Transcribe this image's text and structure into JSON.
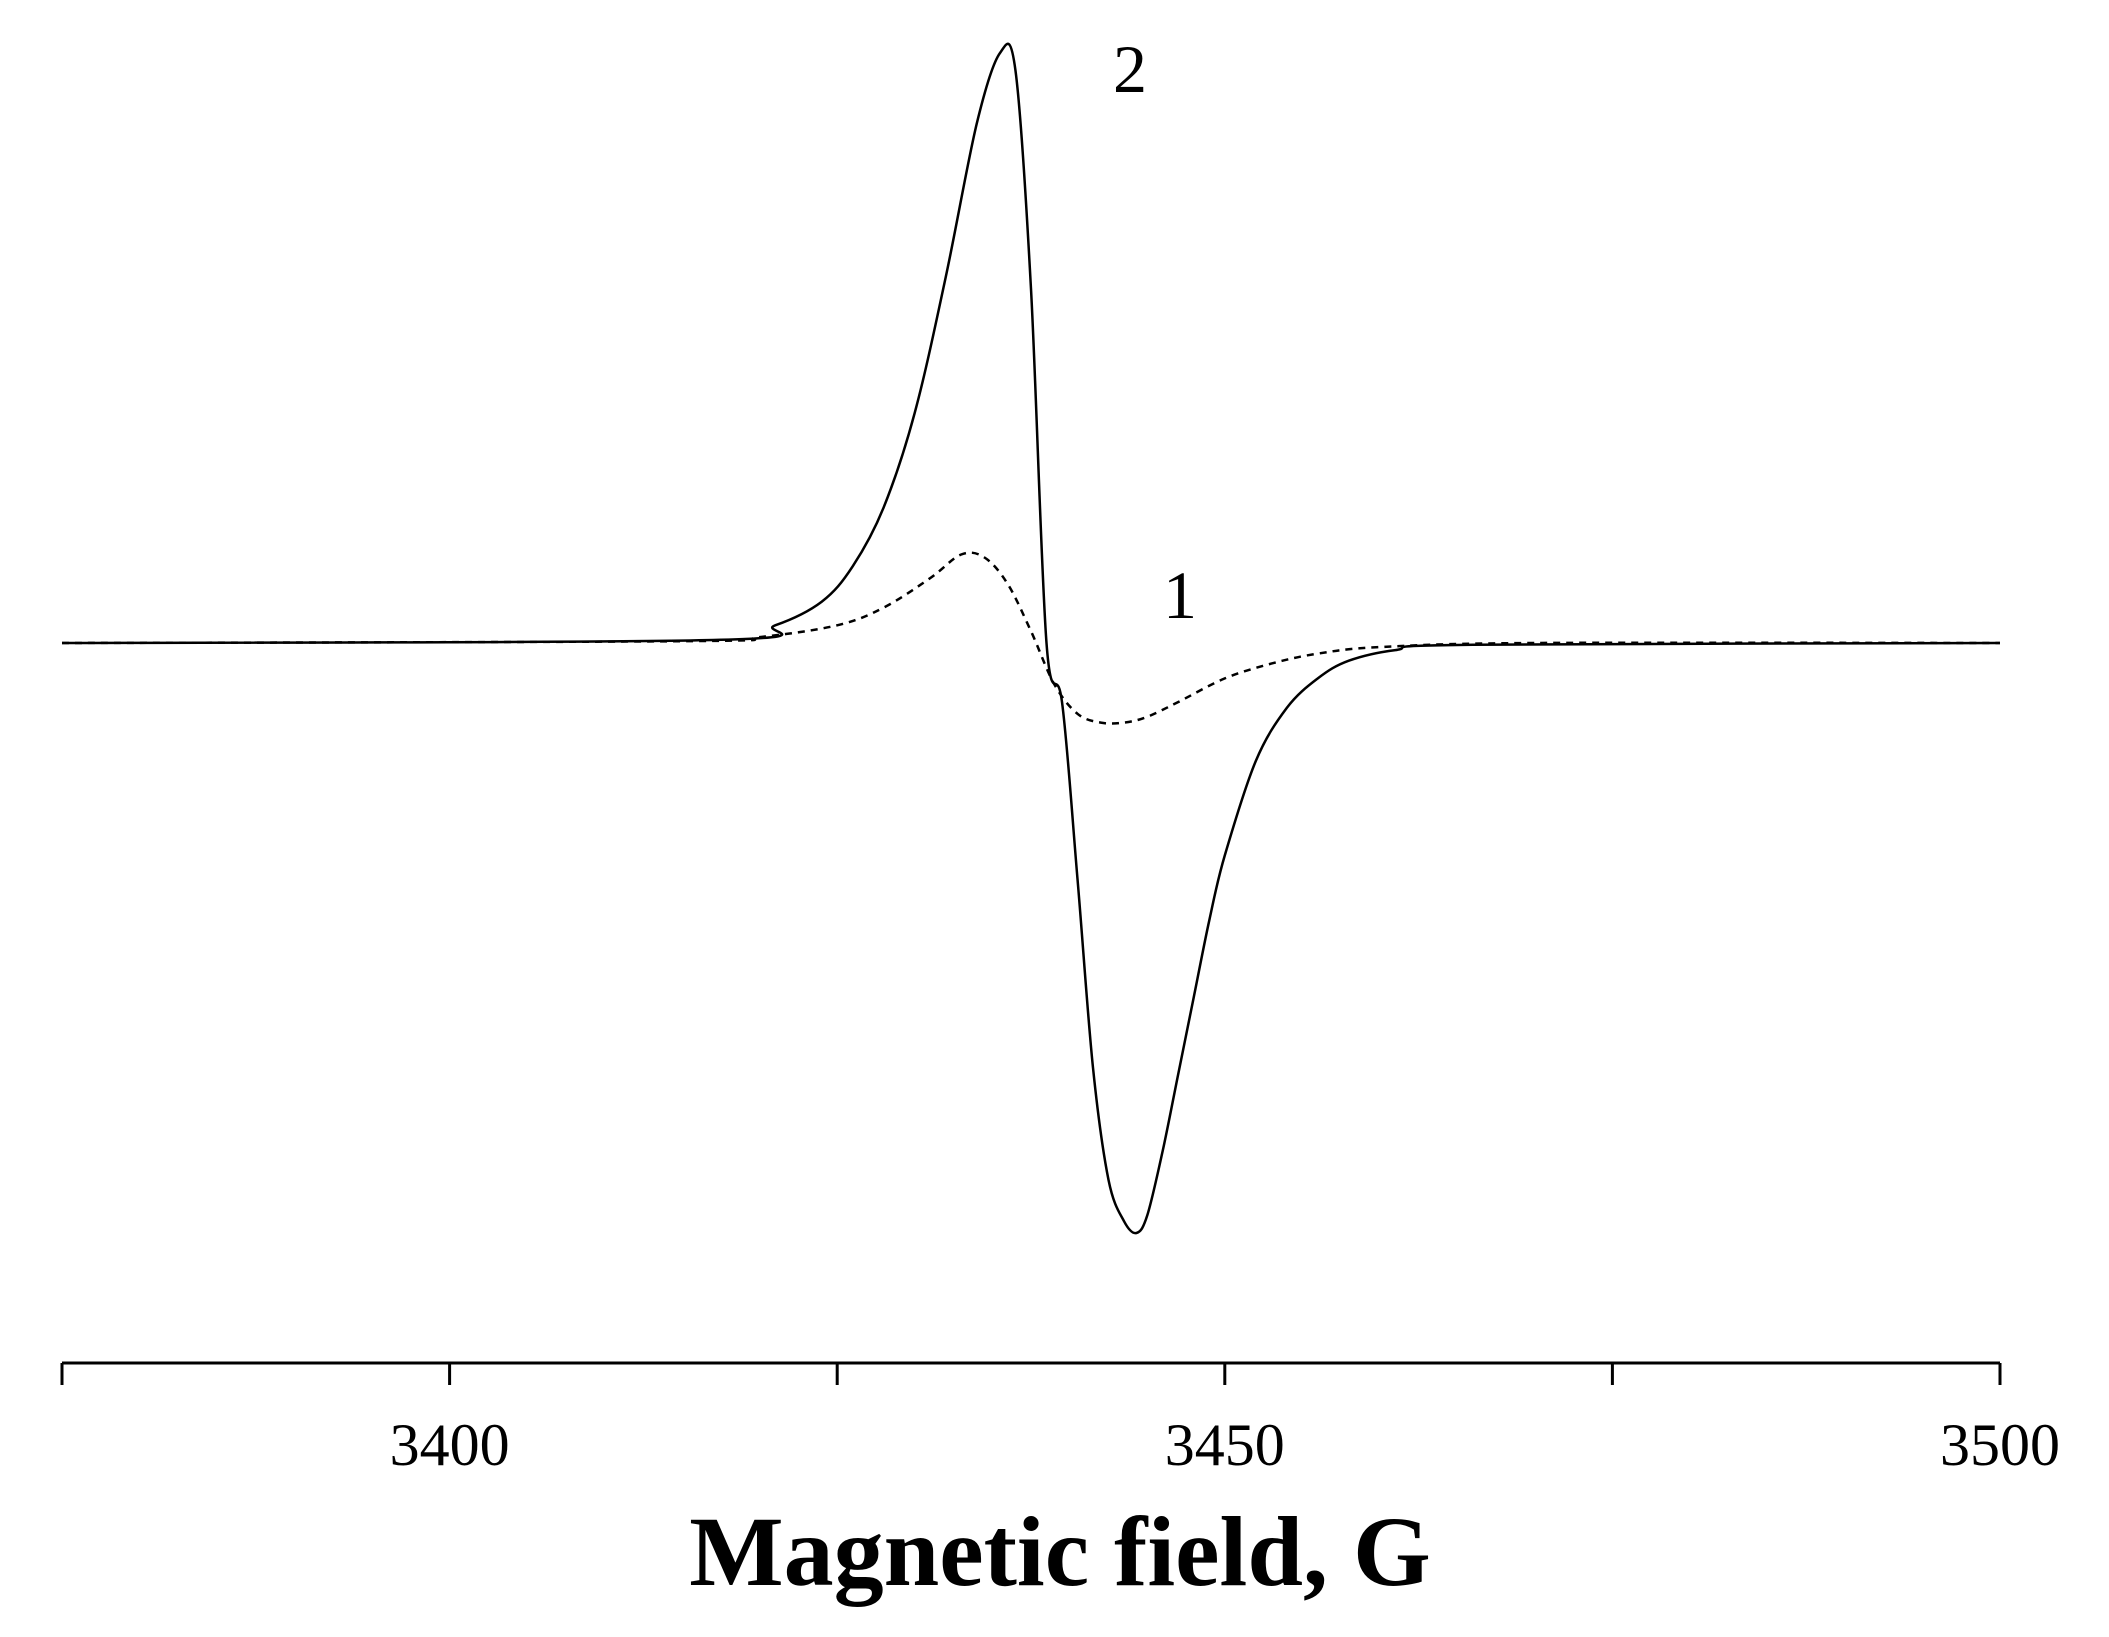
{
  "chart_data": {
    "type": "line",
    "title": "",
    "xlabel": "Magnetic field, G",
    "ylabel": "",
    "xlim": [
      3375,
      3500
    ],
    "ylim": [
      -1.0,
      1.0
    ],
    "grid": false,
    "x_ticks": [
      3400,
      3450,
      3500
    ],
    "x_tick_labels": [
      "3400",
      "3450",
      "3500"
    ],
    "x_minor_ticks": [
      3375,
      3400,
      3425,
      3450,
      3475,
      3500
    ],
    "series": [
      {
        "name": "1",
        "style": "dashed",
        "x": [
          3375,
          3415,
          3420,
          3425,
          3428,
          3431,
          3433,
          3434.5,
          3436,
          3437.5,
          3439,
          3440.5,
          3442,
          3443.5,
          3445,
          3447,
          3450,
          3453,
          3456,
          3460,
          3470,
          3500
        ],
        "y": [
          0,
          0.003,
          0.01,
          0.03,
          0.06,
          0.11,
          0.15,
          0.145,
          0.1,
          0.02,
          -0.07,
          -0.12,
          -0.135,
          -0.135,
          -0.125,
          -0.1,
          -0.06,
          -0.035,
          -0.018,
          -0.007,
          0,
          0
        ]
      },
      {
        "name": "2",
        "style": "solid",
        "x": [
          3375,
          3417,
          3421,
          3424,
          3426,
          3428,
          3430,
          3432,
          3434,
          3435.5,
          3436.5,
          3437.5,
          3438.5,
          3439.5,
          3440.5,
          3441.5,
          3442.5,
          3443.5,
          3444.3,
          3445,
          3446,
          3447,
          3448,
          3449,
          3450,
          3452,
          3454,
          3456,
          3458,
          3461,
          3466,
          3500
        ],
        "y": [
          0,
          0.005,
          0.03,
          0.07,
          0.13,
          0.23,
          0.39,
          0.62,
          0.88,
          1.0,
          0.97,
          0.6,
          0.0,
          -0.1,
          -0.4,
          -0.72,
          -0.91,
          -0.98,
          -1.0,
          -0.97,
          -0.86,
          -0.73,
          -0.6,
          -0.47,
          -0.36,
          -0.2,
          -0.11,
          -0.06,
          -0.03,
          -0.012,
          -0.003,
          0
        ]
      }
    ],
    "annotations": [
      {
        "text": "2",
        "series": "2"
      },
      {
        "text": "1",
        "series": "1"
      }
    ]
  }
}
